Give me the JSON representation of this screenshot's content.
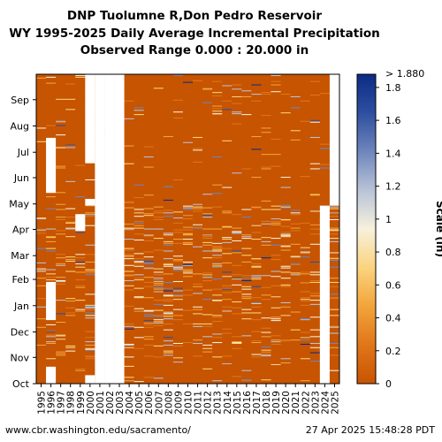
{
  "title": {
    "line1": "DNP Tuolumne R,Don Pedro Reservoir",
    "line2": "WY 1995-2025 Daily Average Incremental Precipitation",
    "line3": "Observed Range 0.000 : 20.000 in"
  },
  "footer": {
    "url": "www.cbr.washington.edu/sacramento/",
    "timestamp": "27 Apr 2025 15:48:28 PDT"
  },
  "chart_data": {
    "type": "heatmap",
    "x_categories": [
      "1995",
      "1996",
      "1997",
      "1998",
      "1999",
      "2000",
      "2001",
      "2002",
      "2003",
      "2004",
      "2005",
      "2006",
      "2007",
      "2008",
      "2009",
      "2010",
      "2011",
      "2012",
      "2013",
      "2014",
      "2015",
      "2016",
      "2017",
      "2018",
      "2019",
      "2020",
      "2021",
      "2022",
      "2023",
      "2024",
      "2025"
    ],
    "y_ticks": [
      "Oct",
      "Nov",
      "Dec",
      "Jan",
      "Feb",
      "Mar",
      "Apr",
      "May",
      "Jun",
      "Jul",
      "Aug",
      "Sep"
    ],
    "colorbar": {
      "label": "Scale (in)",
      "range": [
        0,
        1.88
      ],
      "ticks": [
        "0",
        "0.2",
        "0.4",
        "0.6",
        "0.8",
        "1",
        "1.2",
        "1.4",
        "1.6",
        "1.8"
      ],
      "top_label": "> 1.880",
      "colors": [
        "#c85400",
        "#e0761a",
        "#f2a43a",
        "#fbd37e",
        "#f7f1dc",
        "#b8c3d8",
        "#6f86bd",
        "#2e4fa0",
        "#0c2b85"
      ]
    },
    "background_color": "#c65400",
    "missing_data": [
      {
        "year": "1996",
        "from_day": 0,
        "to_day": 20
      },
      {
        "year": "1996",
        "from_day": 75,
        "to_day": 120
      },
      {
        "year": "1996",
        "from_day": 225,
        "to_day": 290
      },
      {
        "year": "1999",
        "from_day": 180,
        "to_day": 200
      },
      {
        "year": "2000",
        "from_day": 0,
        "to_day": 10
      },
      {
        "year": "2000",
        "from_day": 210,
        "to_day": 218
      },
      {
        "year": "2000",
        "from_day": 260,
        "to_day": 365
      },
      {
        "year": "2001",
        "from_day": 0,
        "to_day": 365
      },
      {
        "year": "2002",
        "from_day": 0,
        "to_day": 365
      },
      {
        "year": "2003",
        "from_day": 0,
        "to_day": 365
      },
      {
        "year": "2002",
        "from_day": 0,
        "to_day": 365
      },
      {
        "year": "2024",
        "from_day": 0,
        "to_day": 210
      },
      {
        "year": "2025",
        "from_day": 210,
        "to_day": 365
      }
    ]
  }
}
